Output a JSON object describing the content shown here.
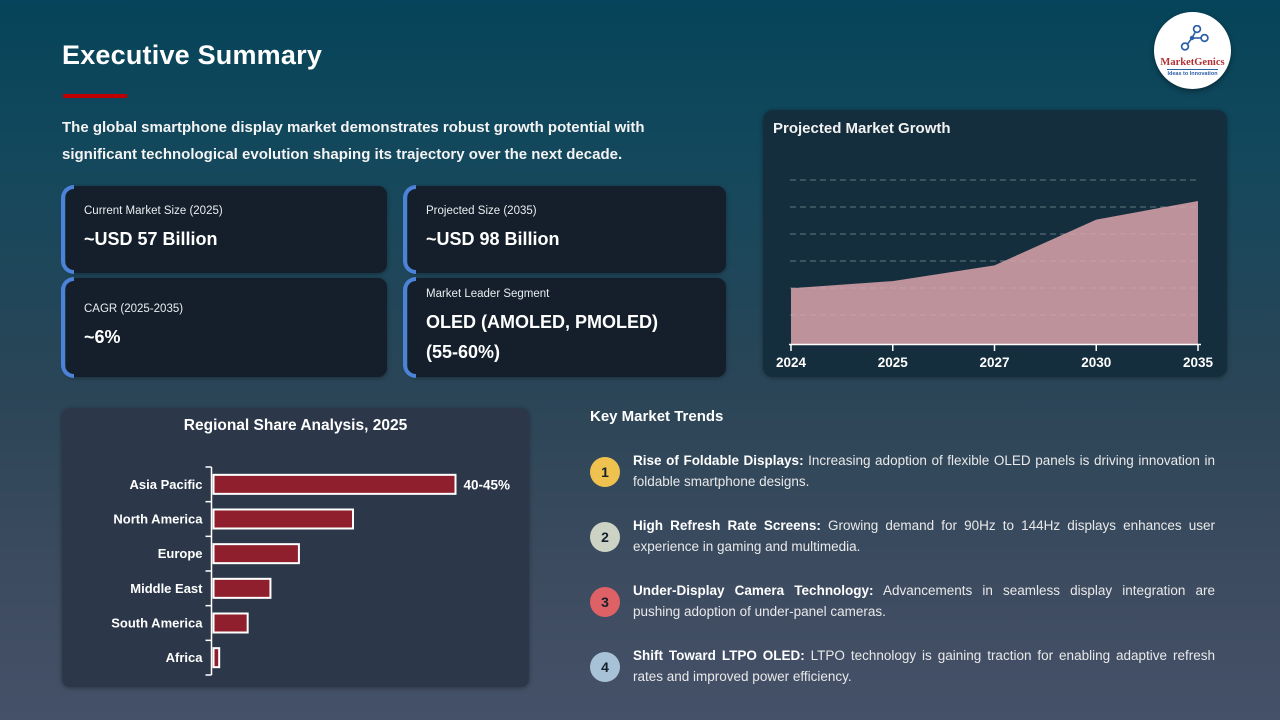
{
  "slide": {
    "title": "Executive Summary",
    "intro_lines": [
      "The global smartphone display market demonstrates robust growth potential with",
      "significant technological evolution shaping its trajectory over the next decade."
    ]
  },
  "logo": {
    "name": "MarketGenics",
    "tagline": "Ideas to Innovation"
  },
  "colors": {
    "title_accent_red": "#c00000",
    "card_accent_blue": "#4d82d9",
    "area_fill": "#bd929b",
    "bar_fill": "#8f1f2c"
  },
  "stat_cards": [
    {
      "label": "Current Market Size (2025)",
      "value_lines": [
        "~USD 57 Billion"
      ]
    },
    {
      "label": "Projected Size (2035)",
      "value_lines": [
        "~USD 98 Billion"
      ]
    },
    {
      "label": "CAGR (2025-2035)",
      "value_lines": [
        "~6%"
      ]
    },
    {
      "label": "Market Leader Segment",
      "value_lines": [
        "OLED (AMOLED, PMOLED)",
        "(55-60%)"
      ]
    }
  ],
  "chart_data": [
    {
      "type": "area",
      "title": "Projected Market Growth",
      "x": [
        "2024",
        "2025",
        "2027",
        "2030",
        "2035"
      ],
      "relative_values": [
        39,
        44,
        55,
        87,
        100
      ],
      "ylabel": "",
      "xlabel": "",
      "y_ticks_shown": false,
      "grid": "dashed horizontal",
      "fill_color": "#bd929b"
    },
    {
      "type": "bar",
      "orientation": "horizontal",
      "title": "Regional Share Analysis, 2025",
      "categories": [
        "Asia Pacific",
        "North America",
        "Europe",
        "Middle East",
        "South America",
        "Africa"
      ],
      "values_pct": [
        42.5,
        24.5,
        15,
        10,
        6,
        1
      ],
      "value_labels": [
        "40-45%",
        "",
        "",
        "",
        "",
        ""
      ],
      "bar_color": "#8f1f2c",
      "xlim": [
        0,
        45
      ]
    }
  ],
  "trends": {
    "heading": "Key Market Trends",
    "items": [
      {
        "number": "1",
        "badge_color": "#efc24f",
        "label": "Rise of Foldable Displays:",
        "text": "Increasing adoption of flexible OLED panels is driving innovation in foldable smartphone designs."
      },
      {
        "number": "2",
        "badge_color": "#ccd3c4",
        "label": "High Refresh Rate Screens:",
        "text": "Growing demand for 90Hz to 144Hz displays enhances user experience in gaming and multimedia."
      },
      {
        "number": "3",
        "badge_color": "#dd6165",
        "label": "Under-Display Camera Technology:",
        "text": "Advancements in seamless display integration are pushing adoption of under-panel cameras."
      },
      {
        "number": "4",
        "badge_color": "#a7c2d6",
        "label": "Shift Toward LTPO OLED:",
        "text": "LTPO technology is gaining traction for enabling adaptive refresh rates and improved power efficiency."
      }
    ]
  }
}
